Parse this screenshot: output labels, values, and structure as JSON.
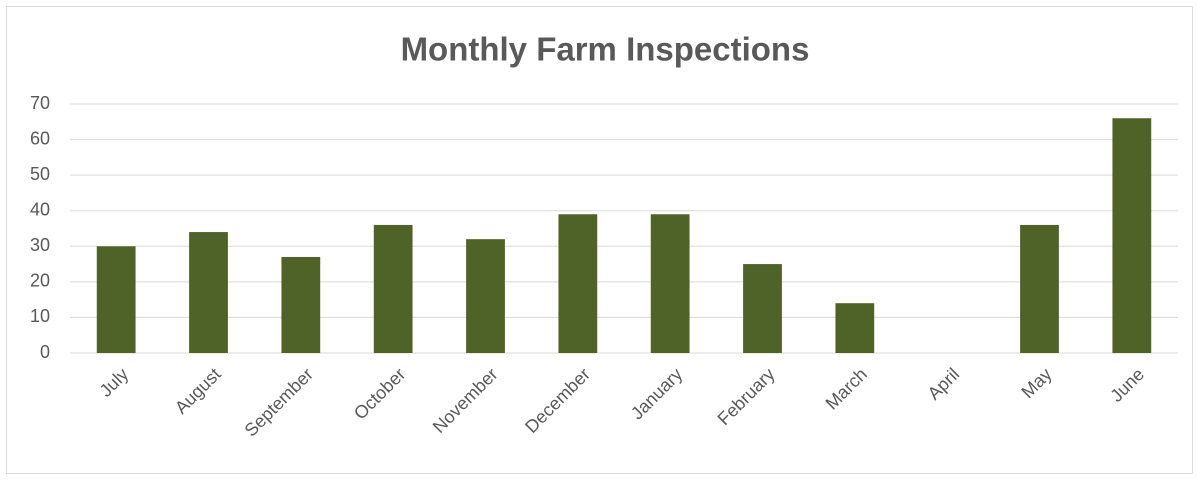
{
  "chart_data": {
    "type": "bar",
    "title": "Monthly Farm Inspections",
    "categories": [
      "July",
      "August",
      "September",
      "October",
      "November",
      "December",
      "January",
      "February",
      "March",
      "April",
      "May",
      "June"
    ],
    "values": [
      30,
      34,
      27,
      36,
      32,
      39,
      39,
      25,
      14,
      0,
      36,
      66
    ],
    "color": "#4f6228",
    "ylim": [
      0,
      70
    ],
    "yticks": [
      0,
      10,
      20,
      30,
      40,
      50,
      60,
      70
    ],
    "grid": true
  }
}
